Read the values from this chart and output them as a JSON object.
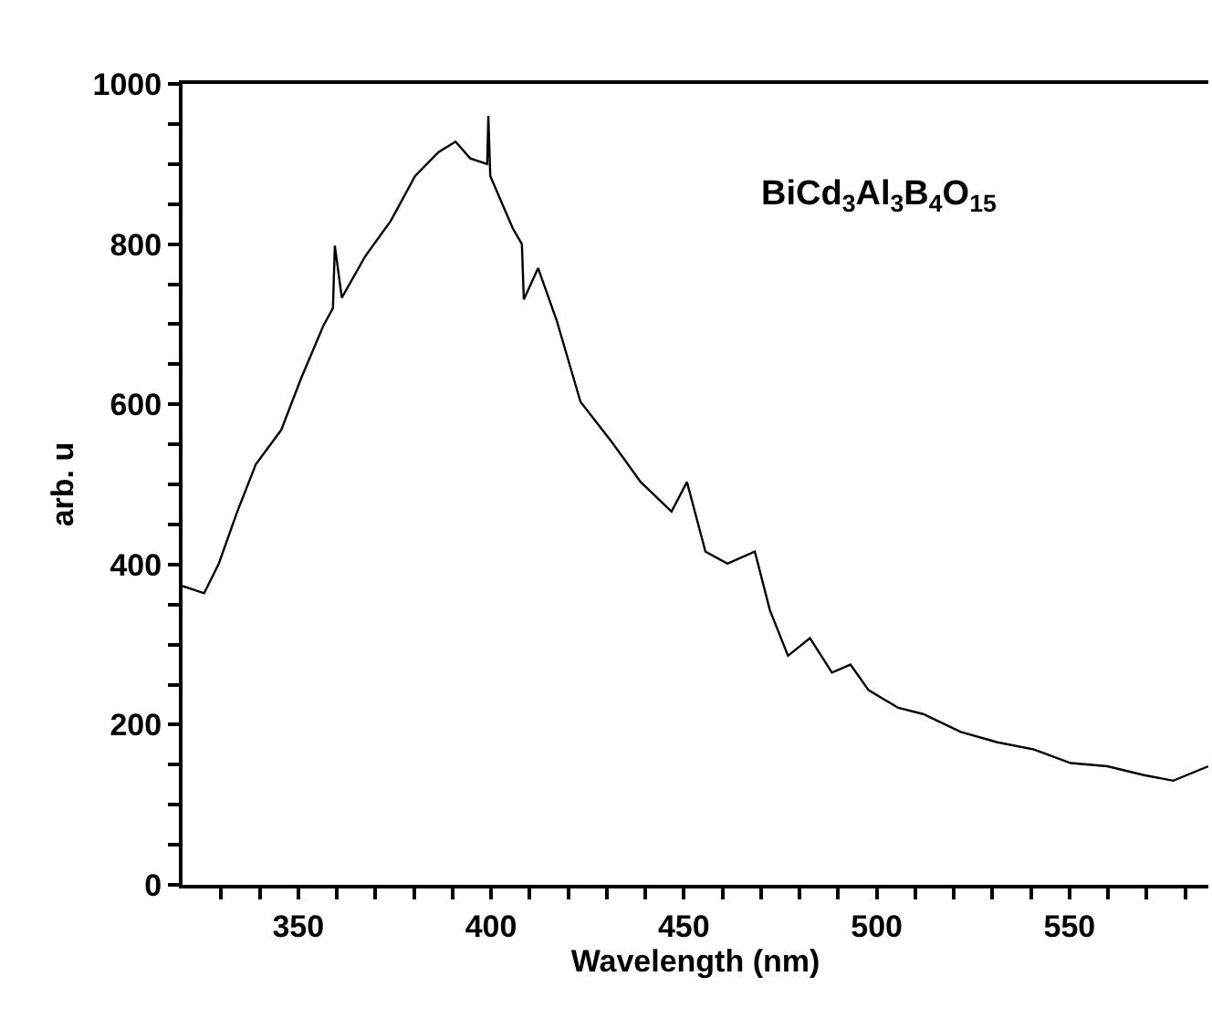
{
  "chart_data": {
    "type": "line",
    "xlabel": "Wavelength (nm)",
    "ylabel": "arb. u",
    "annotations": [
      "BiCd$_{3}$Al$_{3}$B$_{4}$O$_{15}$"
    ],
    "x": [
      320,
      325.6,
      329.4,
      334.2,
      339,
      345.6,
      350.8,
      356.5,
      359,
      359.5,
      361.3,
      367.4,
      374,
      380.3,
      386.4,
      390.8,
      394.6,
      399,
      399.3,
      399.8,
      405.6,
      408,
      408.5,
      412.2,
      417,
      423.2,
      431.3,
      438.8,
      446.8,
      450.8,
      455.6,
      461.3,
      468.4,
      472.3,
      477,
      482.7,
      488.4,
      493.2,
      497.9,
      505.6,
      512.2,
      521.8,
      531.3,
      540.8,
      550.3,
      559.8,
      569.3,
      576.9,
      586
    ],
    "series": [
      {
        "color": "#000000",
        "values": [
          373,
          364,
          401,
          466,
          525,
          568,
          633,
          698,
          720,
          798,
          733,
          785,
          829,
          885,
          915,
          928,
          907,
          900,
          960,
          885,
          820,
          800,
          731,
          770,
          705,
          603,
          553,
          503,
          466,
          503,
          416,
          401,
          416,
          343,
          286,
          308,
          265,
          275,
          243,
          221,
          213,
          191,
          178,
          169,
          152,
          148,
          137,
          130,
          148
        ]
      }
    ],
    "xlim": [
      320,
      586
    ],
    "ylim": [
      0,
      1000
    ],
    "xticks": [
      {
        "value": 330,
        "label": null
      },
      {
        "value": 340,
        "label": null
      },
      350,
      {
        "value": 360,
        "label": null
      },
      {
        "value": 370,
        "label": null
      },
      {
        "value": 380,
        "label": null
      },
      {
        "value": 390,
        "label": null
      },
      400,
      {
        "value": 410,
        "label": null
      },
      {
        "value": 420,
        "label": null
      },
      {
        "value": 430,
        "label": null
      },
      {
        "value": 440,
        "label": null
      },
      450,
      {
        "value": 460,
        "label": null
      },
      {
        "value": 470,
        "label": null
      },
      {
        "value": 480,
        "label": null
      },
      {
        "value": 490,
        "label": null
      },
      500,
      {
        "value": 510,
        "label": null
      },
      {
        "value": 520,
        "label": null
      },
      {
        "value": 530,
        "label": null
      },
      {
        "value": 540,
        "label": null
      },
      550,
      {
        "value": 560,
        "label": null
      },
      {
        "value": 570,
        "label": null
      },
      {
        "value": 580,
        "label": null
      }
    ],
    "yticks": [
      0,
      {
        "value": 50,
        "label": null
      },
      {
        "value": 100,
        "label": null
      },
      {
        "value": 150,
        "label": null
      },
      200,
      {
        "value": 250,
        "label": null
      },
      {
        "value": 300,
        "label": null
      },
      {
        "value": 350,
        "label": null
      },
      400,
      {
        "value": 450,
        "label": null
      },
      {
        "value": 500,
        "label": null
      },
      {
        "value": 550,
        "label": null
      },
      600,
      {
        "value": 650,
        "label": null
      },
      {
        "value": 700,
        "label": null
      },
      {
        "value": 750,
        "label": null
      },
      800,
      {
        "value": 850,
        "label": null
      },
      {
        "value": 900,
        "label": null
      },
      {
        "value": 950,
        "label": null
      },
      1000
    ],
    "legend": false,
    "marker": "none",
    "line_style": "solid"
  }
}
